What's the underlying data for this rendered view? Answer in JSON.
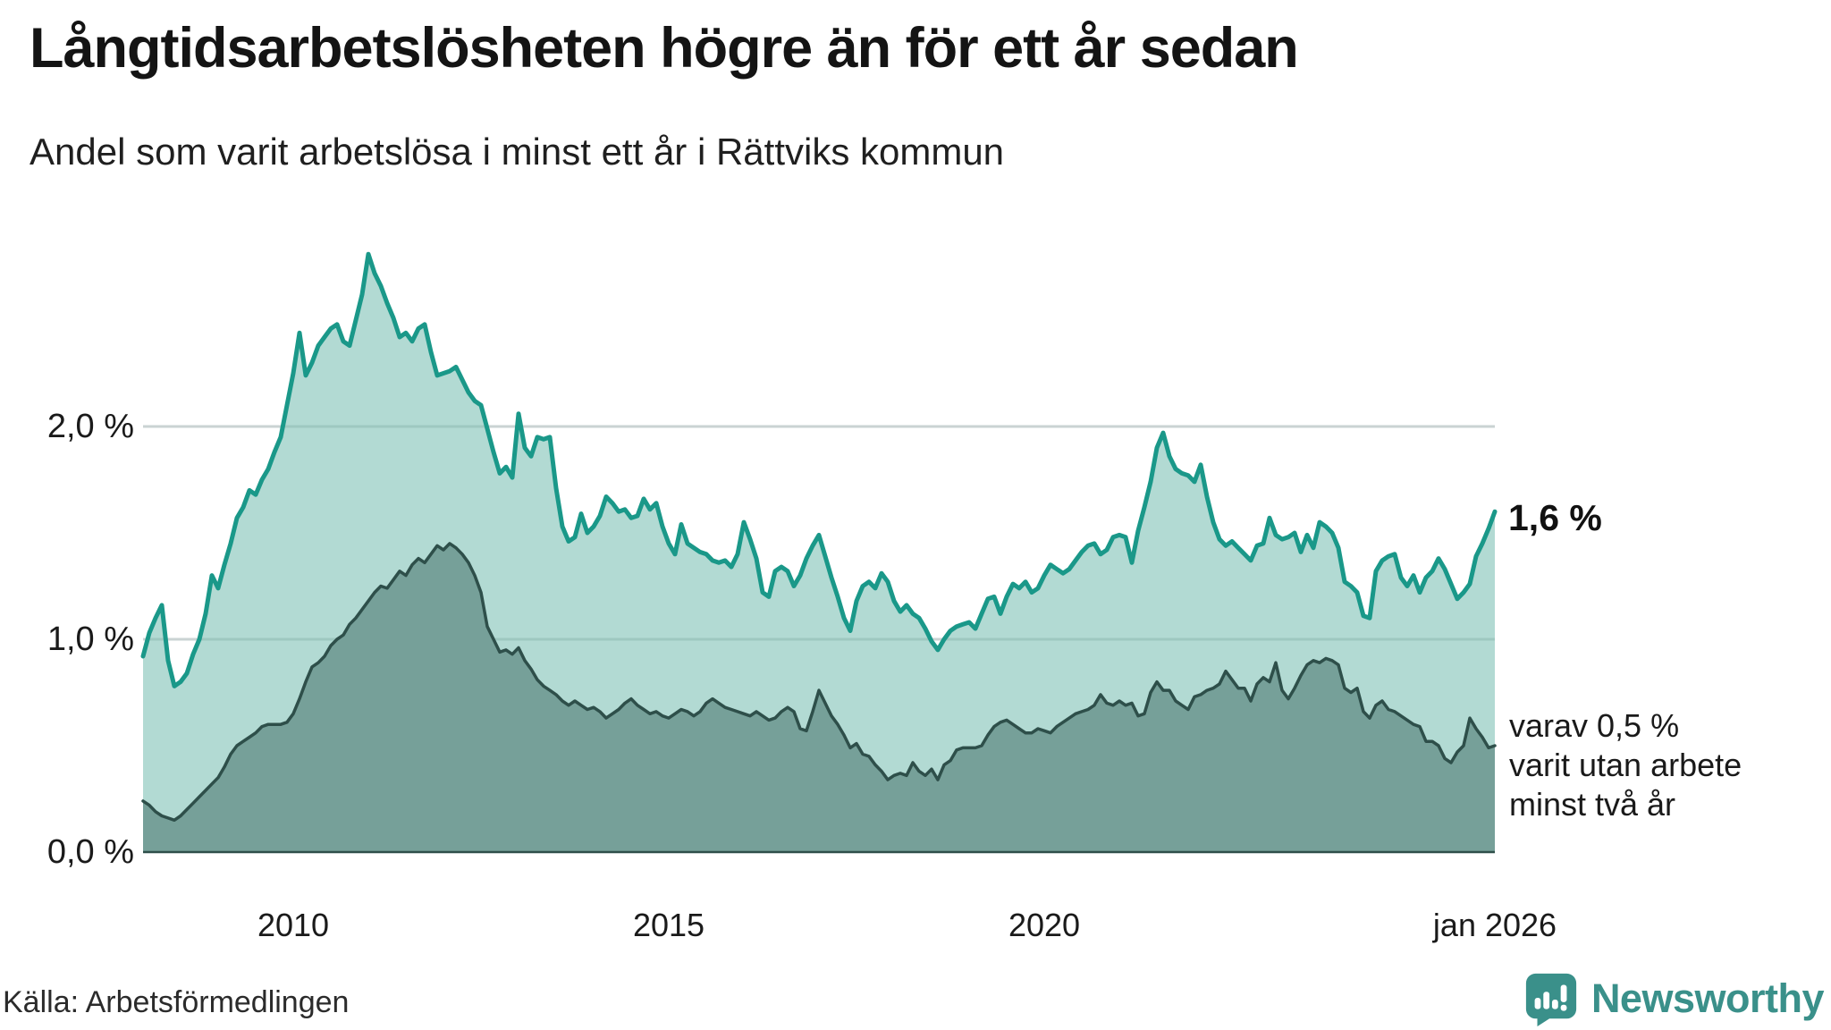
{
  "header": {
    "title": "Långtidsarbetslösheten högre än för ett år sedan",
    "subtitle": "Andel som varit arbetslösa i minst ett år i Rättviks kommun"
  },
  "annotations": {
    "latest_total_label": "1,6 %",
    "secondary_line1": "varav 0,5 %",
    "secondary_line2": "varit utan arbete",
    "secondary_line3": "minst två år"
  },
  "footer": {
    "source": "Källa: Arbetsförmedlingen",
    "brand": "Newsworthy"
  },
  "colors": {
    "total_line": "#1a9889",
    "total_fill": "#b2dad3",
    "two_year_line": "#2e4f4a",
    "two_year_fill": "#76a099",
    "gridline": "#e4e6e9",
    "grid_tint_over_fill": "rgba(20,70,60,0.12)",
    "axis_baseline": "#2e4f4a",
    "brand_teal": "#3a908a"
  },
  "chart_data": {
    "type": "area",
    "x_start": "2008-01",
    "x_end": "2026-01",
    "x_interval": "monthly",
    "x_tick_labels": [
      "2010",
      "2015",
      "2020",
      "jan 2026"
    ],
    "x_tick_month_index": [
      24,
      84,
      144,
      216
    ],
    "y_tick_labels": [
      "0,0 %",
      "1,0 %",
      "2,0 %"
    ],
    "y_tick_values": [
      0,
      1,
      2
    ],
    "ylim": [
      0,
      2.95
    ],
    "grid": true,
    "legend_position": "right-annotations",
    "latest": {
      "total_pct": 1.6,
      "at_least_two_years_pct": 0.5
    },
    "series": [
      {
        "name": "Andel arbetslösa minst ett år",
        "values": [
          0.92,
          1.03,
          1.1,
          1.16,
          0.9,
          0.78,
          0.8,
          0.84,
          0.93,
          1.0,
          1.12,
          1.3,
          1.24,
          1.35,
          1.45,
          1.57,
          1.62,
          1.7,
          1.68,
          1.75,
          1.8,
          1.88,
          1.95,
          2.1,
          2.25,
          2.44,
          2.24,
          2.3,
          2.38,
          2.42,
          2.46,
          2.48,
          2.4,
          2.38,
          2.5,
          2.62,
          2.81,
          2.72,
          2.66,
          2.58,
          2.51,
          2.42,
          2.44,
          2.4,
          2.46,
          2.48,
          2.35,
          2.24,
          2.25,
          2.26,
          2.28,
          2.22,
          2.16,
          2.12,
          2.1,
          1.99,
          1.88,
          1.78,
          1.81,
          1.76,
          2.06,
          1.9,
          1.86,
          1.95,
          1.94,
          1.95,
          1.71,
          1.53,
          1.46,
          1.48,
          1.59,
          1.5,
          1.53,
          1.58,
          1.67,
          1.64,
          1.6,
          1.61,
          1.57,
          1.58,
          1.66,
          1.61,
          1.64,
          1.53,
          1.45,
          1.4,
          1.54,
          1.45,
          1.43,
          1.41,
          1.4,
          1.37,
          1.36,
          1.37,
          1.34,
          1.4,
          1.55,
          1.47,
          1.38,
          1.22,
          1.2,
          1.32,
          1.34,
          1.32,
          1.25,
          1.3,
          1.38,
          1.44,
          1.49,
          1.39,
          1.29,
          1.2,
          1.1,
          1.04,
          1.18,
          1.25,
          1.27,
          1.24,
          1.31,
          1.27,
          1.18,
          1.13,
          1.16,
          1.12,
          1.1,
          1.05,
          0.99,
          0.95,
          1.0,
          1.04,
          1.06,
          1.07,
          1.08,
          1.05,
          1.12,
          1.19,
          1.2,
          1.12,
          1.2,
          1.26,
          1.24,
          1.27,
          1.22,
          1.24,
          1.3,
          1.35,
          1.33,
          1.31,
          1.33,
          1.37,
          1.41,
          1.44,
          1.45,
          1.4,
          1.42,
          1.48,
          1.49,
          1.48,
          1.36,
          1.51,
          1.62,
          1.74,
          1.9,
          1.97,
          1.86,
          1.8,
          1.78,
          1.77,
          1.74,
          1.82,
          1.67,
          1.55,
          1.47,
          1.44,
          1.46,
          1.43,
          1.4,
          1.37,
          1.44,
          1.45,
          1.57,
          1.49,
          1.47,
          1.48,
          1.5,
          1.41,
          1.49,
          1.43,
          1.55,
          1.53,
          1.5,
          1.43,
          1.27,
          1.25,
          1.22,
          1.11,
          1.1,
          1.32,
          1.37,
          1.39,
          1.4,
          1.29,
          1.25,
          1.3,
          1.22,
          1.29,
          1.32,
          1.38,
          1.33,
          1.26,
          1.19,
          1.22,
          1.26,
          1.39,
          1.45,
          1.52,
          1.6
        ]
      },
      {
        "name": "varav utan arbete minst två år",
        "values": [
          0.24,
          0.22,
          0.19,
          0.17,
          0.16,
          0.15,
          0.17,
          0.2,
          0.23,
          0.26,
          0.29,
          0.32,
          0.35,
          0.4,
          0.46,
          0.5,
          0.52,
          0.54,
          0.56,
          0.59,
          0.6,
          0.6,
          0.6,
          0.61,
          0.65,
          0.72,
          0.8,
          0.87,
          0.89,
          0.92,
          0.97,
          1.0,
          1.02,
          1.07,
          1.1,
          1.14,
          1.18,
          1.22,
          1.25,
          1.24,
          1.28,
          1.32,
          1.3,
          1.35,
          1.38,
          1.36,
          1.4,
          1.44,
          1.42,
          1.45,
          1.43,
          1.4,
          1.36,
          1.3,
          1.22,
          1.06,
          1.0,
          0.94,
          0.95,
          0.93,
          0.96,
          0.9,
          0.86,
          0.81,
          0.78,
          0.76,
          0.74,
          0.71,
          0.69,
          0.71,
          0.69,
          0.67,
          0.68,
          0.66,
          0.63,
          0.65,
          0.67,
          0.7,
          0.72,
          0.69,
          0.67,
          0.65,
          0.66,
          0.64,
          0.63,
          0.65,
          0.67,
          0.66,
          0.64,
          0.66,
          0.7,
          0.72,
          0.7,
          0.68,
          0.67,
          0.66,
          0.65,
          0.64,
          0.66,
          0.64,
          0.62,
          0.63,
          0.66,
          0.68,
          0.66,
          0.58,
          0.57,
          0.66,
          0.76,
          0.7,
          0.64,
          0.6,
          0.55,
          0.49,
          0.51,
          0.46,
          0.45,
          0.41,
          0.38,
          0.34,
          0.36,
          0.37,
          0.36,
          0.42,
          0.38,
          0.36,
          0.39,
          0.34,
          0.41,
          0.43,
          0.48,
          0.49,
          0.49,
          0.49,
          0.5,
          0.55,
          0.59,
          0.61,
          0.62,
          0.6,
          0.58,
          0.56,
          0.56,
          0.58,
          0.57,
          0.56,
          0.59,
          0.61,
          0.63,
          0.65,
          0.66,
          0.67,
          0.69,
          0.74,
          0.7,
          0.69,
          0.71,
          0.69,
          0.7,
          0.64,
          0.65,
          0.75,
          0.8,
          0.76,
          0.76,
          0.71,
          0.69,
          0.67,
          0.73,
          0.74,
          0.76,
          0.77,
          0.79,
          0.85,
          0.81,
          0.77,
          0.77,
          0.71,
          0.79,
          0.82,
          0.8,
          0.89,
          0.76,
          0.72,
          0.77,
          0.83,
          0.88,
          0.9,
          0.89,
          0.91,
          0.9,
          0.88,
          0.77,
          0.75,
          0.77,
          0.66,
          0.63,
          0.69,
          0.71,
          0.67,
          0.66,
          0.64,
          0.62,
          0.6,
          0.59,
          0.52,
          0.52,
          0.5,
          0.44,
          0.42,
          0.47,
          0.5,
          0.63,
          0.58,
          0.54,
          0.49,
          0.5
        ]
      }
    ]
  }
}
